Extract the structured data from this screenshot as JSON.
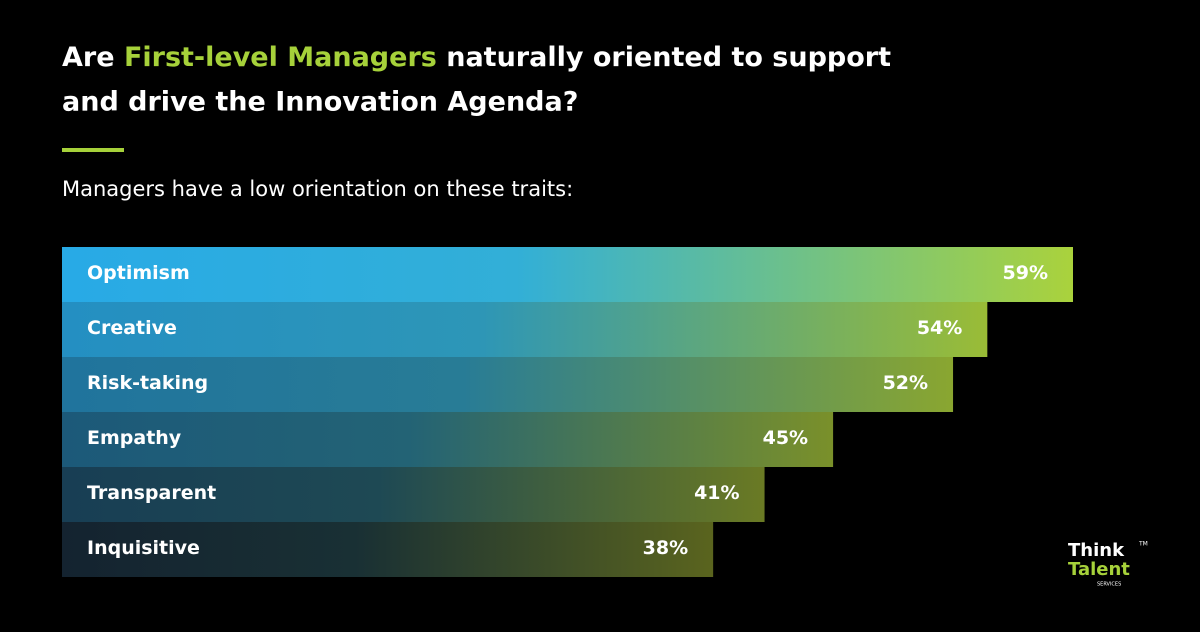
{
  "chart_data": {
    "type": "bar",
    "orientation": "horizontal",
    "title_parts": [
      "Are ",
      "First-level Managers",
      " naturally oriented to support",
      "and drive the Innovation Agenda?"
    ],
    "subtitle": "Managers have a low orientation on these traits:",
    "categories": [
      "Optimism",
      "Creative",
      "Risk-taking",
      "Empathy",
      "Transparent",
      "Inquisitive"
    ],
    "values": [
      59,
      54,
      52,
      45,
      41,
      38
    ],
    "value_labels": [
      "59%",
      "54%",
      "52%",
      "45%",
      "41%",
      "38%"
    ]
  },
  "logo": {
    "line1": "Think",
    "line2": "Talent",
    "line3": "SERVICES",
    "mark": "TM"
  }
}
